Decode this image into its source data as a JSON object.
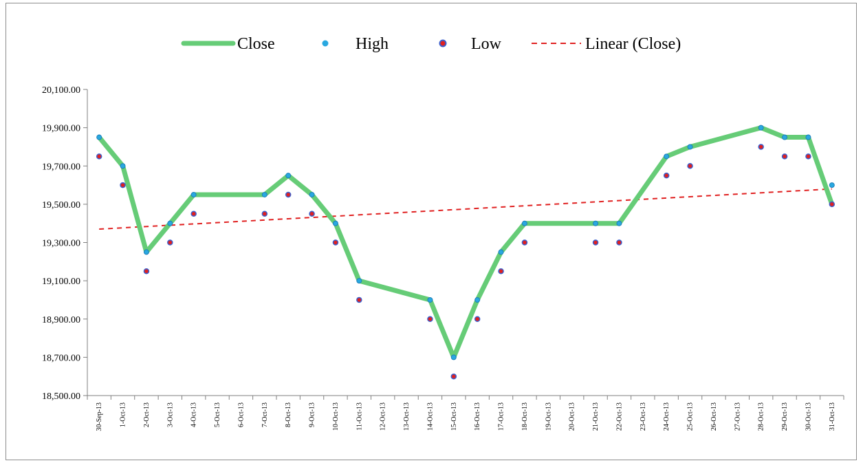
{
  "chart_data": {
    "type": "line",
    "title": "",
    "xlabel": "",
    "ylabel": "",
    "ylim": [
      18500,
      20100
    ],
    "y_ticks": [
      18500,
      18700,
      18900,
      19100,
      19300,
      19500,
      19700,
      19900,
      20100
    ],
    "y_tick_labels": [
      "18,500.00",
      "18,700.00",
      "18,900.00",
      "19,100.00",
      "19,300.00",
      "19,500.00",
      "19,700.00",
      "19,900.00",
      "20,100.00"
    ],
    "categories": [
      "30-Sep-13",
      "1-Oct-13",
      "2-Oct-13",
      "3-Oct-13",
      "4-Oct-13",
      "5-Oct-13",
      "6-Oct-13",
      "7-Oct-13",
      "8-Oct-13",
      "9-Oct-13",
      "10-Oct-13",
      "11-Oct-13",
      "12-Oct-13",
      "13-Oct-13",
      "14-Oct-13",
      "15-Oct-13",
      "16-Oct-13",
      "17-Oct-13",
      "18-Oct-13",
      "19-Oct-13",
      "20-Oct-13",
      "21-Oct-13",
      "22-Oct-13",
      "23-Oct-13",
      "24-Oct-13",
      "25-Oct-13",
      "26-Oct-13",
      "27-Oct-13",
      "28-Oct-13",
      "29-Oct-13",
      "30-Oct-13",
      "31-Oct-13"
    ],
    "legend_position": "top",
    "grid": false,
    "series": [
      {
        "name": "Close",
        "kind": "line",
        "color": "#66cc77",
        "points": [
          {
            "x": "30-Sep-13",
            "y": 19850
          },
          {
            "x": "1-Oct-13",
            "y": 19700
          },
          {
            "x": "2-Oct-13",
            "y": 19250
          },
          {
            "x": "3-Oct-13",
            "y": 19400
          },
          {
            "x": "4-Oct-13",
            "y": 19550
          },
          {
            "x": "7-Oct-13",
            "y": 19550
          },
          {
            "x": "8-Oct-13",
            "y": 19650
          },
          {
            "x": "9-Oct-13",
            "y": 19550
          },
          {
            "x": "10-Oct-13",
            "y": 19400
          },
          {
            "x": "11-Oct-13",
            "y": 19100
          },
          {
            "x": "14-Oct-13",
            "y": 19000
          },
          {
            "x": "15-Oct-13",
            "y": 18700
          },
          {
            "x": "16-Oct-13",
            "y": 19000
          },
          {
            "x": "17-Oct-13",
            "y": 19250
          },
          {
            "x": "18-Oct-13",
            "y": 19400
          },
          {
            "x": "21-Oct-13",
            "y": 19400
          },
          {
            "x": "22-Oct-13",
            "y": 19400
          },
          {
            "x": "24-Oct-13",
            "y": 19750
          },
          {
            "x": "25-Oct-13",
            "y": 19800
          },
          {
            "x": "28-Oct-13",
            "y": 19900
          },
          {
            "x": "29-Oct-13",
            "y": 19850
          },
          {
            "x": "30-Oct-13",
            "y": 19850
          },
          {
            "x": "31-Oct-13",
            "y": 19500
          }
        ]
      },
      {
        "name": "High",
        "kind": "marker",
        "color": "#29a8e0",
        "points": [
          {
            "x": "30-Sep-13",
            "y": 19850
          },
          {
            "x": "1-Oct-13",
            "y": 19700
          },
          {
            "x": "2-Oct-13",
            "y": 19250
          },
          {
            "x": "3-Oct-13",
            "y": 19400
          },
          {
            "x": "4-Oct-13",
            "y": 19550
          },
          {
            "x": "7-Oct-13",
            "y": 19550
          },
          {
            "x": "8-Oct-13",
            "y": 19650
          },
          {
            "x": "9-Oct-13",
            "y": 19550
          },
          {
            "x": "10-Oct-13",
            "y": 19400
          },
          {
            "x": "11-Oct-13",
            "y": 19100
          },
          {
            "x": "14-Oct-13",
            "y": 19000
          },
          {
            "x": "15-Oct-13",
            "y": 18700
          },
          {
            "x": "16-Oct-13",
            "y": 19000
          },
          {
            "x": "17-Oct-13",
            "y": 19250
          },
          {
            "x": "18-Oct-13",
            "y": 19400
          },
          {
            "x": "21-Oct-13",
            "y": 19400
          },
          {
            "x": "22-Oct-13",
            "y": 19400
          },
          {
            "x": "24-Oct-13",
            "y": 19750
          },
          {
            "x": "25-Oct-13",
            "y": 19800
          },
          {
            "x": "28-Oct-13",
            "y": 19900
          },
          {
            "x": "29-Oct-13",
            "y": 19850
          },
          {
            "x": "30-Oct-13",
            "y": 19850
          },
          {
            "x": "31-Oct-13",
            "y": 19600
          }
        ]
      },
      {
        "name": "Low",
        "kind": "marker",
        "color": "#e02020",
        "edge_color": "#3a5fcd",
        "points": [
          {
            "x": "30-Sep-13",
            "y": 19750
          },
          {
            "x": "1-Oct-13",
            "y": 19600
          },
          {
            "x": "2-Oct-13",
            "y": 19150
          },
          {
            "x": "3-Oct-13",
            "y": 19300
          },
          {
            "x": "4-Oct-13",
            "y": 19450
          },
          {
            "x": "7-Oct-13",
            "y": 19450
          },
          {
            "x": "8-Oct-13",
            "y": 19550
          },
          {
            "x": "9-Oct-13",
            "y": 19450
          },
          {
            "x": "10-Oct-13",
            "y": 19300
          },
          {
            "x": "11-Oct-13",
            "y": 19000
          },
          {
            "x": "14-Oct-13",
            "y": 18900
          },
          {
            "x": "15-Oct-13",
            "y": 18600
          },
          {
            "x": "16-Oct-13",
            "y": 18900
          },
          {
            "x": "17-Oct-13",
            "y": 19150
          },
          {
            "x": "18-Oct-13",
            "y": 19300
          },
          {
            "x": "21-Oct-13",
            "y": 19300
          },
          {
            "x": "22-Oct-13",
            "y": 19300
          },
          {
            "x": "24-Oct-13",
            "y": 19650
          },
          {
            "x": "25-Oct-13",
            "y": 19700
          },
          {
            "x": "28-Oct-13",
            "y": 19800
          },
          {
            "x": "29-Oct-13",
            "y": 19750
          },
          {
            "x": "30-Oct-13",
            "y": 19750
          },
          {
            "x": "31-Oct-13",
            "y": 19500
          }
        ]
      },
      {
        "name": "Linear (Close)",
        "kind": "trendline",
        "color": "#e02020",
        "points": [
          {
            "x": "30-Sep-13",
            "y": 19370
          },
          {
            "x": "31-Oct-13",
            "y": 19580
          }
        ]
      }
    ]
  }
}
